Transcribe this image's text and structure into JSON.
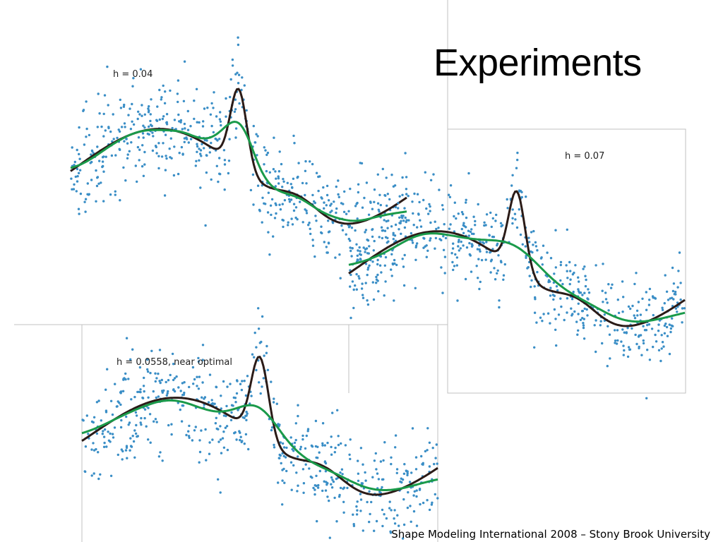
{
  "slide": {
    "title": "Experiments",
    "footer": "Shape Modeling International 2008 – Stony Brook University"
  },
  "colors": {
    "points": "#3a8ec6",
    "true_curve": "#2b1b17",
    "fit_curve": "#1a9a4a",
    "panel_border": "#c0c0c0"
  },
  "chart_data": [
    {
      "type": "scatter",
      "label": "h = 0.04",
      "title": "",
      "xlabel": "",
      "ylabel": "",
      "xlim": [
        0,
        1
      ],
      "ylim": [
        -1.2,
        1.6
      ],
      "series": [
        {
          "kind": "points",
          "n": 600
        },
        {
          "kind": "line",
          "role": "true_curve"
        },
        {
          "kind": "line",
          "role": "fit",
          "bandwidth": 0.04
        }
      ]
    },
    {
      "type": "scatter",
      "label": "h = 0.07",
      "title": "",
      "xlabel": "",
      "ylabel": "",
      "xlim": [
        0,
        1
      ],
      "ylim": [
        -1.2,
        1.6
      ],
      "series": [
        {
          "kind": "points",
          "n": 600
        },
        {
          "kind": "line",
          "role": "true_curve"
        },
        {
          "kind": "line",
          "role": "fit",
          "bandwidth": 0.07
        }
      ]
    },
    {
      "type": "scatter",
      "label": "h = 0.0558, near optimal",
      "title": "",
      "xlabel": "",
      "ylabel": "",
      "xlim": [
        0,
        1
      ],
      "ylim": [
        -1.2,
        1.6
      ],
      "series": [
        {
          "kind": "points",
          "n": 600
        },
        {
          "kind": "line",
          "role": "true_curve"
        },
        {
          "kind": "line",
          "role": "fit",
          "bandwidth": 0.0558
        }
      ]
    }
  ]
}
